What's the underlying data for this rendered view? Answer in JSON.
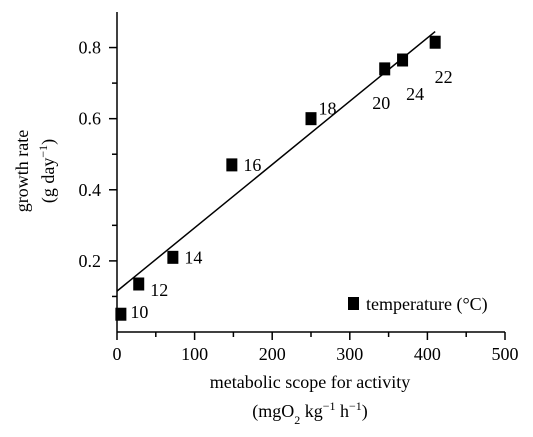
{
  "chart_data": {
    "type": "scatter",
    "title": "",
    "xlabel": "metabolic scope for activity",
    "xlabel_unit": {
      "open": "(mgO",
      "sub": "2",
      "mid1": " kg",
      "sup1": "−1",
      "mid2": " h",
      "sup2": "−1",
      "close": ")"
    },
    "ylabel": "growth rate",
    "ylabel_unit": {
      "open": "(g day",
      "sup": "−1",
      "close": ")"
    },
    "xlim": [
      0,
      500
    ],
    "ylim": [
      0.0,
      0.9
    ],
    "xticks": [
      0,
      100,
      200,
      300,
      400,
      500
    ],
    "yticks": [
      0.2,
      0.4,
      0.6,
      0.8
    ],
    "ytick_labels": [
      "0.2",
      "0.4",
      "0.6",
      "0.8"
    ],
    "grid": false,
    "legend": {
      "position": "bottom-right",
      "label": "temperature (°C)",
      "marker": "square"
    },
    "series": [
      {
        "name": "temperature (°C)",
        "marker": "square",
        "points": [
          {
            "x": 5,
            "y": 0.05,
            "label": "10"
          },
          {
            "x": 28,
            "y": 0.135,
            "label": "12"
          },
          {
            "x": 72,
            "y": 0.21,
            "label": "14"
          },
          {
            "x": 148,
            "y": 0.47,
            "label": "16"
          },
          {
            "x": 250,
            "y": 0.6,
            "label": "18"
          },
          {
            "x": 345,
            "y": 0.74,
            "label": "20"
          },
          {
            "x": 368,
            "y": 0.765,
            "label": "24"
          },
          {
            "x": 410,
            "y": 0.815,
            "label": "22"
          }
        ]
      }
    ],
    "fit_line": {
      "x": [
        0,
        410
      ],
      "y": [
        0.115,
        0.845
      ]
    }
  }
}
